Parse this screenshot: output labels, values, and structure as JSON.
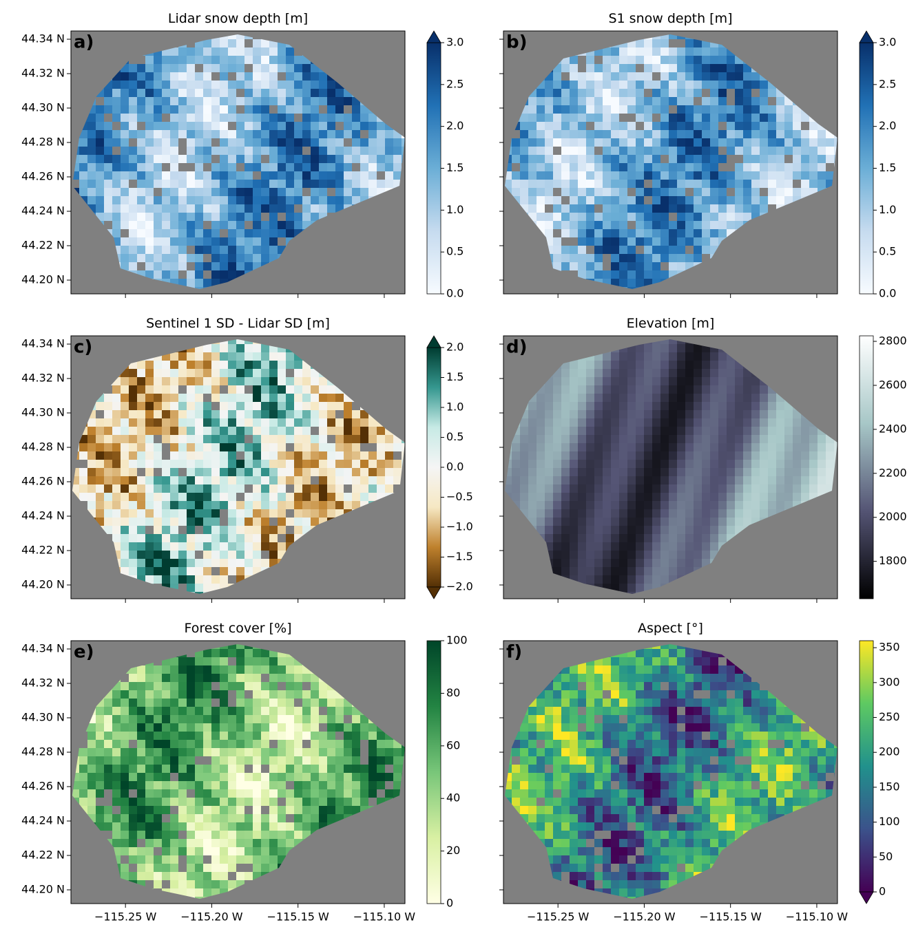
{
  "chart_data": [
    {
      "type": "map",
      "title": "Lidar snow depth [m]",
      "panel_label": "a)",
      "xlim": [
        -115.2816,
        -115.088
      ],
      "ylim": [
        44.192,
        44.3448
      ],
      "xticks": [
        -115.25,
        -115.2,
        -115.15,
        -115.1
      ],
      "yticks": [
        {
          "value": 44.2,
          "label": "44.20 N"
        },
        {
          "value": 44.22,
          "label": "44.22 N"
        },
        {
          "value": 44.24,
          "label": "44.24 N"
        },
        {
          "value": 44.26,
          "label": "44.26 N"
        },
        {
          "value": 44.28,
          "label": "44.28 N"
        },
        {
          "value": 44.3,
          "label": "44.30 N"
        },
        {
          "value": 44.32,
          "label": "44.32 N"
        },
        {
          "value": 44.34,
          "label": "44.34 N"
        }
      ],
      "colorbar": {
        "lim": [
          0,
          3
        ],
        "extend": "max",
        "colors": [
          "#f7fbff",
          "#c6dbef",
          "#6baed6",
          "#2171b5",
          "#08306b"
        ],
        "ticks": [
          {
            "value": 0,
            "label": "0.0"
          },
          {
            "value": 0.5,
            "label": "0.5"
          },
          {
            "value": 1,
            "label": "1.0"
          },
          {
            "value": 1.5,
            "label": "1.5"
          },
          {
            "value": 2,
            "label": "2.0"
          },
          {
            "value": 2.5,
            "label": "2.5"
          },
          {
            "value": 3,
            "label": "3.0"
          }
        ]
      }
    },
    {
      "type": "map",
      "title": "S1 snow depth [m]",
      "panel_label": "b)",
      "xlim": [
        -115.2816,
        -115.088
      ],
      "ylim": [
        44.192,
        44.3448
      ],
      "xticks": [
        -115.25,
        -115.2,
        -115.15,
        -115.1
      ],
      "yticks": [
        44.2,
        44.22,
        44.24,
        44.26,
        44.28,
        44.3,
        44.32,
        44.34
      ],
      "colorbar": {
        "lim": [
          0,
          3
        ],
        "extend": "max",
        "colors": [
          "#f7fbff",
          "#c6dbef",
          "#6baed6",
          "#2171b5",
          "#08306b"
        ],
        "ticks": [
          {
            "value": 0,
            "label": "0.0"
          },
          {
            "value": 0.5,
            "label": "0.5"
          },
          {
            "value": 1,
            "label": "1.0"
          },
          {
            "value": 1.5,
            "label": "1.5"
          },
          {
            "value": 2,
            "label": "2.0"
          },
          {
            "value": 2.5,
            "label": "2.5"
          },
          {
            "value": 3,
            "label": "3.0"
          }
        ]
      }
    },
    {
      "type": "map",
      "title": "Sentinel 1 SD - Lidar SD [m]",
      "panel_label": "c)",
      "xlim": [
        -115.2816,
        -115.088
      ],
      "ylim": [
        44.192,
        44.3448
      ],
      "xticks": [
        -115.25,
        -115.2,
        -115.15,
        -115.1
      ],
      "yticks": [
        {
          "value": 44.2,
          "label": "44.20 N"
        },
        {
          "value": 44.22,
          "label": "44.22 N"
        },
        {
          "value": 44.24,
          "label": "44.24 N"
        },
        {
          "value": 44.26,
          "label": "44.26 N"
        },
        {
          "value": 44.28,
          "label": "44.28 N"
        },
        {
          "value": 44.3,
          "label": "44.30 N"
        },
        {
          "value": 44.32,
          "label": "44.32 N"
        },
        {
          "value": 44.34,
          "label": "44.34 N"
        }
      ],
      "colorbar": {
        "lim": [
          -2,
          2
        ],
        "extend": "both",
        "colors": [
          "#543005",
          "#bf812d",
          "#f6e8c3",
          "#f5f5f5",
          "#c7eae5",
          "#35978f",
          "#003c30"
        ],
        "ticks": [
          {
            "value": -2,
            "label": "−2.0"
          },
          {
            "value": -1.5,
            "label": "−1.5"
          },
          {
            "value": -1,
            "label": "−1.0"
          },
          {
            "value": -0.5,
            "label": "−0.5"
          },
          {
            "value": 0,
            "label": "0.0"
          },
          {
            "value": 0.5,
            "label": "0.5"
          },
          {
            "value": 1,
            "label": "1.0"
          },
          {
            "value": 1.5,
            "label": "1.5"
          },
          {
            "value": 2,
            "label": "2.0"
          }
        ]
      }
    },
    {
      "type": "map",
      "title": "Elevation [m]",
      "panel_label": "d)",
      "xlim": [
        -115.2816,
        -115.088
      ],
      "ylim": [
        44.192,
        44.3448
      ],
      "xticks": [
        -115.25,
        -115.2,
        -115.15,
        -115.1
      ],
      "yticks": [
        44.2,
        44.22,
        44.24,
        44.26,
        44.28,
        44.3,
        44.32,
        44.34
      ],
      "colorbar": {
        "lim": [
          1630,
          2825
        ],
        "colors": [
          "#000000",
          "#545474",
          "#a7c7c7",
          "#ffffff"
        ],
        "ticks": [
          1800,
          2000,
          2200,
          2400,
          2600,
          2800
        ]
      }
    },
    {
      "type": "map",
      "title": "Forest cover [%]",
      "panel_label": "e)",
      "xlim": [
        -115.2816,
        -115.088
      ],
      "ylim": [
        44.192,
        44.3448
      ],
      "xticks": [
        {
          "value": -115.25,
          "label": "−115.25 W"
        },
        {
          "value": -115.2,
          "label": "−115.20 W"
        },
        {
          "value": -115.15,
          "label": "−115.15 W"
        },
        {
          "value": -115.1,
          "label": "−115.10 W"
        }
      ],
      "yticks": [
        {
          "value": 44.2,
          "label": "44.20 N"
        },
        {
          "value": 44.22,
          "label": "44.22 N"
        },
        {
          "value": 44.24,
          "label": "44.24 N"
        },
        {
          "value": 44.26,
          "label": "44.26 N"
        },
        {
          "value": 44.28,
          "label": "44.28 N"
        },
        {
          "value": 44.3,
          "label": "44.30 N"
        },
        {
          "value": 44.32,
          "label": "44.32 N"
        },
        {
          "value": 44.34,
          "label": "44.34 N"
        }
      ],
      "colorbar": {
        "lim": [
          0,
          100
        ],
        "colors": [
          "#ffffe5",
          "#d9f0a3",
          "#78c679",
          "#238443",
          "#004529"
        ],
        "ticks": [
          0,
          20,
          40,
          60,
          80,
          100
        ]
      }
    },
    {
      "type": "map",
      "title": "Aspect [°]",
      "panel_label": "f)",
      "xlim": [
        -115.2816,
        -115.088
      ],
      "ylim": [
        44.192,
        44.3448
      ],
      "xticks": [
        {
          "value": -115.25,
          "label": "−115.25 W"
        },
        {
          "value": -115.2,
          "label": "−115.20 W"
        },
        {
          "value": -115.15,
          "label": "−115.15 W"
        },
        {
          "value": -115.1,
          "label": "−115.10 W"
        }
      ],
      "yticks": [
        44.2,
        44.22,
        44.24,
        44.26,
        44.28,
        44.3,
        44.32,
        44.34
      ],
      "colorbar": {
        "lim": [
          0,
          360
        ],
        "extend": "min",
        "colors": [
          "#440154",
          "#3b528b",
          "#21918c",
          "#5ec962",
          "#fde725"
        ],
        "ticks": [
          0,
          50,
          100,
          150,
          200,
          250,
          300,
          350
        ]
      }
    }
  ]
}
